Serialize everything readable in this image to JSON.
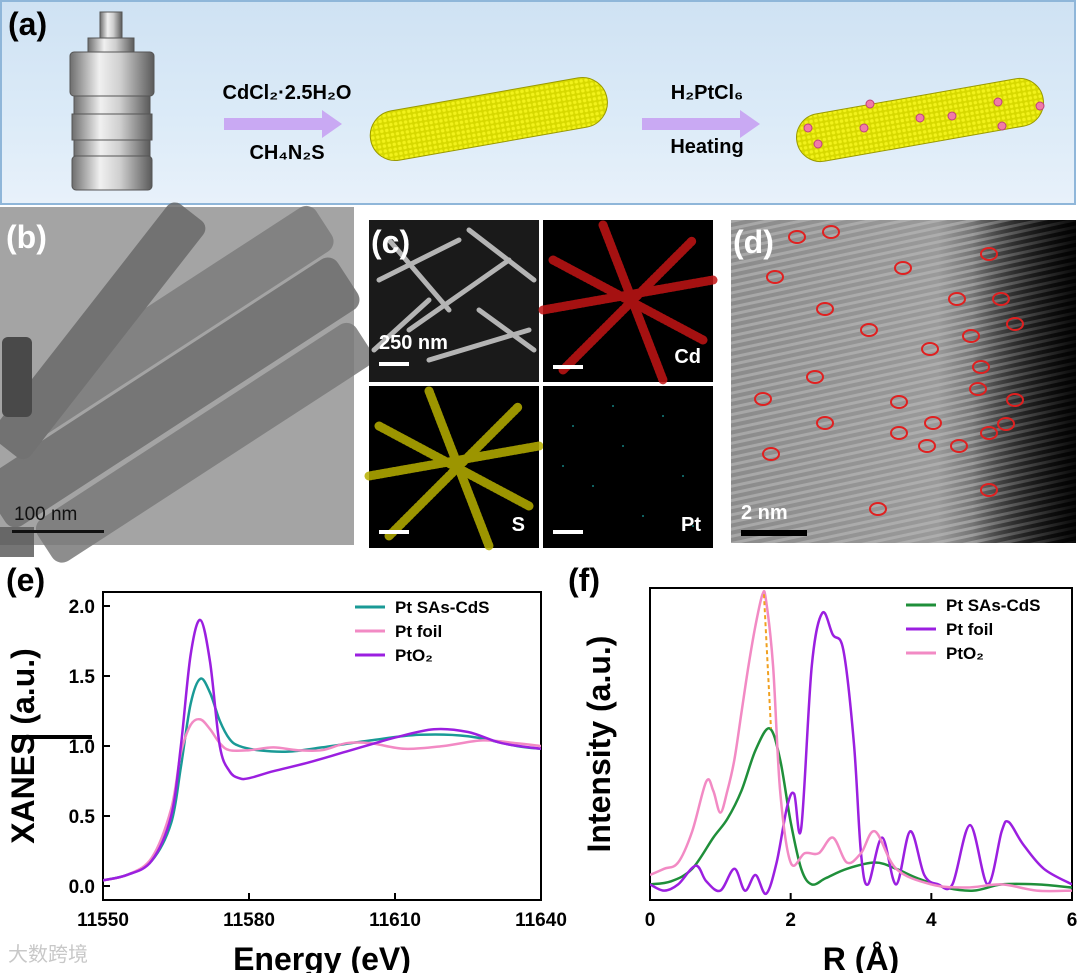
{
  "panels": {
    "a": "(a)",
    "b": "(b)",
    "c": "(c)",
    "d": "(d)",
    "e": "(e)",
    "f": "(f)"
  },
  "scheme": {
    "step1_top": "CdCl₂·2.5H₂O",
    "step1_bottom": "CH₄N₂S",
    "step2_top": "H₂PtCl₆",
    "step2_bottom": "Heating"
  },
  "tem": {
    "scalebar": "100 nm"
  },
  "eds": {
    "scalebar": "250 nm",
    "cd": "Cd",
    "s": "S",
    "pt": "Pt"
  },
  "haadf": {
    "scalebar": "2 nm"
  },
  "watermark": "大数跨境",
  "colors": {
    "pt_sas_cds_e": "#1a9a96",
    "pt_foil_e": "#f28ac4",
    "pto2_e": "#9b1fe0",
    "pt_sas_cds_f": "#1f8f3a",
    "pt_foil_f": "#9b1fe0",
    "pto2_f": "#f28ac4",
    "circle": "#e02020"
  },
  "chart_data": [
    {
      "type": "line",
      "xlabel": "Energy (eV)",
      "ylabel": "XANES (a.u.)",
      "xlim": [
        11550,
        11640
      ],
      "ylim": [
        -0.1,
        2.1
      ],
      "xticks": [
        11550,
        11580,
        11610,
        11640
      ],
      "yticks": [
        0.0,
        0.5,
        1.0,
        1.5,
        2.0
      ],
      "xtick_labels": [
        "11550",
        "11580",
        "11610",
        "11640"
      ],
      "ytick_labels": [
        "0.0",
        "0.5",
        "1.0",
        "1.5",
        "2.0"
      ],
      "legend_position": "top-right",
      "series": [
        {
          "name": "Pt SAs-CdS",
          "x": [
            11550,
            11555,
            11560,
            11564,
            11566,
            11568,
            11570,
            11572,
            11574,
            11576,
            11578,
            11582,
            11588,
            11595,
            11605,
            11615,
            11625,
            11635,
            11640
          ],
          "y": [
            0.04,
            0.08,
            0.18,
            0.45,
            0.85,
            1.3,
            1.48,
            1.38,
            1.18,
            1.05,
            1.0,
            0.97,
            0.96,
            0.99,
            1.04,
            1.08,
            1.07,
            1.0,
            0.98
          ]
        },
        {
          "name": "Pt foil",
          "x": [
            11550,
            11555,
            11560,
            11564,
            11566,
            11568,
            11570,
            11572,
            11574,
            11576,
            11580,
            11585,
            11590,
            11595,
            11600,
            11605,
            11612,
            11620,
            11628,
            11635,
            11640
          ],
          "y": [
            0.04,
            0.08,
            0.2,
            0.55,
            0.95,
            1.15,
            1.19,
            1.12,
            1.02,
            0.97,
            0.97,
            0.99,
            0.97,
            0.97,
            1.02,
            1.02,
            0.98,
            1.0,
            1.04,
            1.02,
            1.0
          ]
        },
        {
          "name": "PtO₂",
          "x": [
            11550,
            11555,
            11560,
            11564,
            11566,
            11568,
            11570,
            11572,
            11574,
            11576,
            11578,
            11580,
            11585,
            11592,
            11600,
            11610,
            11618,
            11625,
            11632,
            11640
          ],
          "y": [
            0.04,
            0.08,
            0.18,
            0.5,
            1.0,
            1.65,
            1.9,
            1.6,
            1.0,
            0.82,
            0.77,
            0.77,
            0.82,
            0.88,
            0.96,
            1.06,
            1.12,
            1.1,
            1.02,
            0.98
          ]
        }
      ]
    },
    {
      "type": "line",
      "xlabel": "R (Å)",
      "ylabel": "Intensity (a.u.)",
      "xlim": [
        0,
        6
      ],
      "ylim": [
        0,
        1
      ],
      "xticks": [
        0,
        2,
        4,
        6
      ],
      "xtick_labels": [
        "0",
        "2",
        "4",
        "6"
      ],
      "legend_position": "top-right",
      "series": [
        {
          "name": "Pt SAs-CdS",
          "x": [
            0,
            0.3,
            0.6,
            0.9,
            1.1,
            1.3,
            1.5,
            1.7,
            1.85,
            2.0,
            2.15,
            2.3,
            2.5,
            2.8,
            3.2,
            3.5,
            3.8,
            4.2,
            4.6,
            5.0,
            5.5,
            6.0
          ],
          "y": [
            0.05,
            0.06,
            0.1,
            0.2,
            0.26,
            0.35,
            0.48,
            0.55,
            0.45,
            0.25,
            0.1,
            0.05,
            0.07,
            0.1,
            0.12,
            0.1,
            0.07,
            0.04,
            0.03,
            0.05,
            0.05,
            0.04
          ]
        },
        {
          "name": "Pt foil",
          "x": [
            0,
            0.2,
            0.4,
            0.65,
            0.8,
            1.0,
            1.2,
            1.35,
            1.5,
            1.65,
            1.8,
            1.95,
            2.05,
            2.15,
            2.3,
            2.45,
            2.6,
            2.75,
            2.9,
            3.0,
            3.1,
            3.3,
            3.5,
            3.7,
            3.9,
            4.1,
            4.3,
            4.55,
            4.8,
            5.0,
            5.1,
            5.3,
            5.6,
            6.0
          ],
          "y": [
            0.05,
            0.03,
            0.05,
            0.11,
            0.06,
            0.03,
            0.1,
            0.03,
            0.08,
            0.02,
            0.12,
            0.3,
            0.34,
            0.23,
            0.75,
            0.92,
            0.85,
            0.8,
            0.5,
            0.15,
            0.05,
            0.2,
            0.05,
            0.22,
            0.08,
            0.05,
            0.05,
            0.24,
            0.05,
            0.22,
            0.25,
            0.18,
            0.1,
            0.05
          ]
        },
        {
          "name": "PtO₂",
          "x": [
            0,
            0.2,
            0.4,
            0.6,
            0.8,
            0.9,
            1.0,
            1.1,
            1.2,
            1.3,
            1.4,
            1.5,
            1.6,
            1.65,
            1.75,
            1.85,
            2.0,
            2.2,
            2.4,
            2.6,
            2.8,
            3.0,
            3.2,
            3.5,
            4.0,
            4.5,
            5.0,
            5.5,
            6.0
          ],
          "y": [
            0.08,
            0.1,
            0.12,
            0.22,
            0.38,
            0.35,
            0.28,
            0.35,
            0.45,
            0.6,
            0.75,
            0.88,
            0.98,
            0.96,
            0.75,
            0.35,
            0.12,
            0.15,
            0.15,
            0.2,
            0.12,
            0.15,
            0.22,
            0.1,
            0.05,
            0.04,
            0.05,
            0.03,
            0.03
          ]
        }
      ],
      "annotations": [
        {
          "type": "dashed-line",
          "from": [
            1.62,
            0.98
          ],
          "to": [
            1.72,
            0.55
          ],
          "color": "#f0a020"
        }
      ]
    }
  ]
}
